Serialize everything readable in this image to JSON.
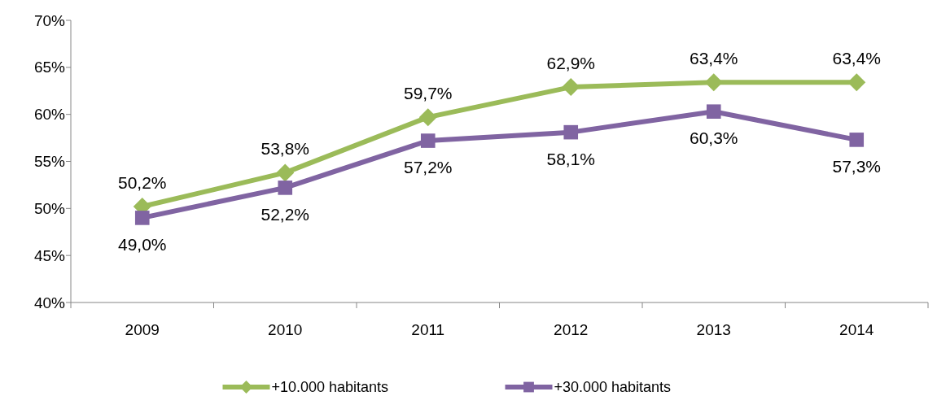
{
  "chart_data": {
    "type": "line",
    "categories": [
      "2009",
      "2010",
      "2011",
      "2012",
      "2013",
      "2014"
    ],
    "series": [
      {
        "name": "+10.000 habitants",
        "color": "#9bbb59",
        "marker": "diamond",
        "values": [
          50.2,
          53.8,
          59.7,
          62.9,
          63.4,
          63.4
        ],
        "value_labels": [
          "50,2%",
          "53,8%",
          "59,7%",
          "62,9%",
          "63,4%",
          "63,4%"
        ]
      },
      {
        "name": "+30.000 habitants",
        "color": "#8064a2",
        "marker": "square",
        "values": [
          49.0,
          52.2,
          57.2,
          58.1,
          60.3,
          57.3
        ],
        "value_labels": [
          "49,0%",
          "52,2%",
          "57,2%",
          "58,1%",
          "60,3%",
          "57,3%"
        ]
      }
    ],
    "ylim": [
      40,
      70
    ],
    "yticks": [
      {
        "value": 40,
        "label": "40%"
      },
      {
        "value": 45,
        "label": "45%"
      },
      {
        "value": 50,
        "label": "50%"
      },
      {
        "value": 55,
        "label": "55%"
      },
      {
        "value": 60,
        "label": "60%"
      },
      {
        "value": 65,
        "label": "65%"
      },
      {
        "value": 70,
        "label": "70%"
      }
    ],
    "grid": false,
    "legend": "bottom"
  }
}
